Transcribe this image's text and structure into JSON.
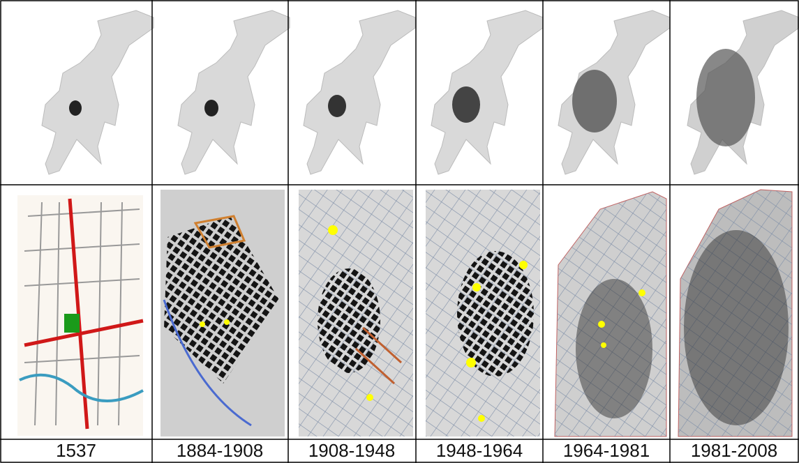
{
  "periods": [
    {
      "label": "1537"
    },
    {
      "label": "1884-1908"
    },
    {
      "label": "1908-1948"
    },
    {
      "label": "1948-1964"
    },
    {
      "label": "1964-1981"
    },
    {
      "label": "1981-2008"
    }
  ]
}
